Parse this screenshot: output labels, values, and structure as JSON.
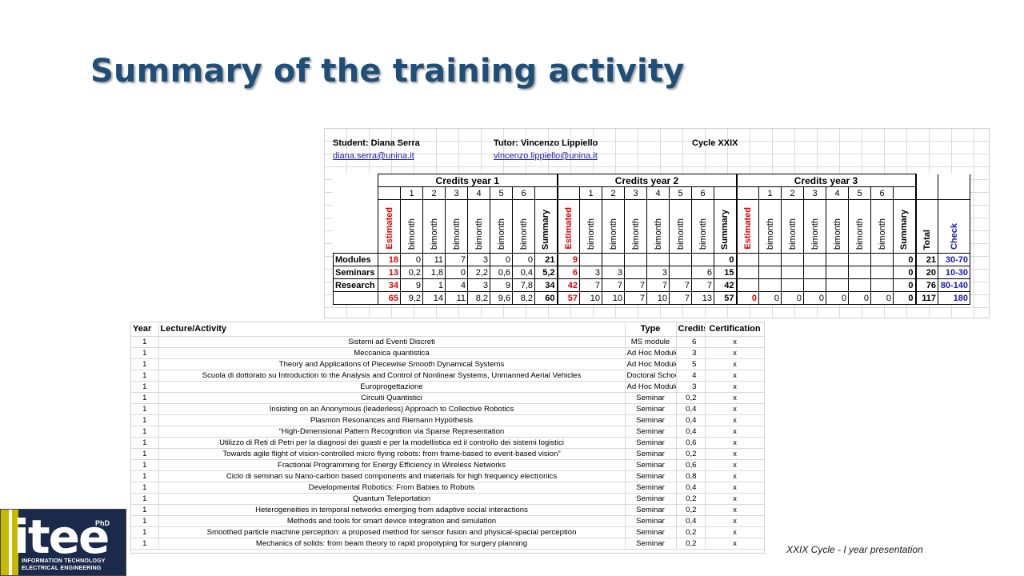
{
  "slide": {
    "title": "Summary of the training activity",
    "footer": "XXIX Cycle - I year presentation",
    "logo": {
      "word": "itee",
      "phd": "PhD",
      "line1": "INFORMATION TECHNOLOGY",
      "line2": "ELECTRICAL ENGINEERING"
    }
  },
  "summary": {
    "student": "Student: Diana Serra",
    "student_email": "diana.serra@unina.it",
    "tutor": "Tutor: Vincenzo Lippiello",
    "tutor_email": "vincenzo.lippiello@unina.it",
    "cycle": "Cycle XXIX",
    "year_headers": [
      "Credits year 1",
      "Credits year 2",
      "Credits year 3"
    ],
    "bimonth_numbers": [
      "1",
      "2",
      "3",
      "4",
      "5",
      "6"
    ],
    "col_estimated": "Estimated",
    "col_bimonth": "bimonth",
    "col_summary": "Summary",
    "col_total": "Total",
    "col_check": "Check",
    "rows": [
      {
        "label": "Modules",
        "cells": [
          "18",
          "0",
          "11",
          "7",
          "3",
          "0",
          "0",
          "21",
          "9",
          "",
          "",
          "",
          "",
          "",
          "",
          "0",
          "",
          "",
          "",
          "",
          "",
          "",
          "",
          "0"
        ],
        "total": "21",
        "check": "30-70"
      },
      {
        "label": "Seminars",
        "cells": [
          "13",
          "0,2",
          "1,8",
          "0",
          "2,2",
          "0,6",
          "0,4",
          "5,2",
          "6",
          "3",
          "3",
          "",
          "3",
          "",
          "6",
          "15",
          "",
          "",
          "",
          "",
          "",
          "",
          "",
          "0"
        ],
        "total": "20",
        "check": "10-30"
      },
      {
        "label": "Research",
        "cells": [
          "34",
          "9",
          "1",
          "4",
          "3",
          "9",
          "7,8",
          "34",
          "42",
          "7",
          "7",
          "7",
          "7",
          "7",
          "7",
          "42",
          "",
          "",
          "",
          "",
          "",
          "",
          "",
          "0"
        ],
        "total": "76",
        "check": "80-140"
      },
      {
        "label": "",
        "cells": [
          "65",
          "9,2",
          "14",
          "11",
          "8,2",
          "9,6",
          "8,2",
          "60",
          "57",
          "10",
          "10",
          "7",
          "10",
          "7",
          "13",
          "57",
          "0",
          "0",
          "0",
          "0",
          "0",
          "0",
          "0",
          "0"
        ],
        "total": "117",
        "check": "180"
      }
    ]
  },
  "activities": {
    "headers": {
      "year": "Year",
      "lecture": "Lecture/Activity",
      "type": "Type",
      "credits": "Credits",
      "certification": "Certification"
    },
    "rows": [
      {
        "year": "1",
        "lecture": "Sistemi ad Eventi Discreti",
        "type": "MS module",
        "credits": "6",
        "cert": "x"
      },
      {
        "year": "1",
        "lecture": "Meccanica quantistica",
        "type": "Ad Hoc Module",
        "credits": "3",
        "cert": "x"
      },
      {
        "year": "1",
        "lecture": "Theory and Applications of Piecewise Smooth Dynamical Systems",
        "type": "Ad Hoc Module",
        "credits": "5",
        "cert": "x"
      },
      {
        "year": "1",
        "lecture": "Scuola di dottorato su Introduction to the Analysis and Control of Nonlinear Systems, Unmanned Aerial Vehicles",
        "type": "Doctoral School",
        "credits": "4",
        "cert": "x"
      },
      {
        "year": "1",
        "lecture": "Europrogettazione",
        "type": "Ad Hoc Module",
        "credits": "3",
        "cert": "x"
      },
      {
        "year": "1",
        "lecture": "Circuiti Quantistici",
        "type": "Seminar",
        "credits": "0,2",
        "cert": "x"
      },
      {
        "year": "1",
        "lecture": "Insisting on an Anonymous (leaderless) Approach to Collective Robotics",
        "type": "Seminar",
        "credits": "0,4",
        "cert": "x"
      },
      {
        "year": "1",
        "lecture": "Plasmon Resonances and Riemann Hypothesis",
        "type": "Seminar",
        "credits": "0,4",
        "cert": "x"
      },
      {
        "year": "1",
        "lecture": "“High-Dimensional Pattern Recognition via Sparse Representation",
        "type": "Seminar",
        "credits": "0,4",
        "cert": "x"
      },
      {
        "year": "1",
        "lecture": "Utilizzo di Reti di Petri per la diagnosi dei guasti e per la modellistica ed il controllo dei sistemi logistici",
        "type": "Seminar",
        "credits": "0,6",
        "cert": "x"
      },
      {
        "year": "1",
        "lecture": "Towards agile flight of vision-controlled micro flying robots: from frame-based to event-based vision”",
        "type": "Seminar",
        "credits": "0,2",
        "cert": "x"
      },
      {
        "year": "1",
        "lecture": "Fractional Programming for Energy Efficiency in Wireless Networks",
        "type": "Seminar",
        "credits": "0,6",
        "cert": "x"
      },
      {
        "year": "1",
        "lecture": "Ciclo di seminari su Nano-carbon based components and materials for high frequency electronics",
        "type": "Seminar",
        "credits": "0,8",
        "cert": "x"
      },
      {
        "year": "1",
        "lecture": "Developmental Robotics: From Babies to Robots",
        "type": "Seminar",
        "credits": "0,4",
        "cert": "x"
      },
      {
        "year": "1",
        "lecture": "Quantum Teleportation",
        "type": "Seminar",
        "credits": "0,2",
        "cert": "x"
      },
      {
        "year": "1",
        "lecture": "Heterogeneities in temporal networks emerging from adaptive social interactions",
        "type": "Seminar",
        "credits": "0,2",
        "cert": "x"
      },
      {
        "year": "1",
        "lecture": "Methods and tools for smart device integration and simulation",
        "type": "Seminar",
        "credits": "0,4",
        "cert": "x"
      },
      {
        "year": "1",
        "lecture": "Smoothed particle machine perception: a proposed method for sensor fusion and physical-spacial perception",
        "type": "Seminar",
        "credits": "0,2",
        "cert": "x"
      },
      {
        "year": "1",
        "lecture": "Mechanics of solids: from beam theory to rapid propotyping for surgery planning",
        "type": "Seminar",
        "credits": "0,2",
        "cert": "x"
      }
    ]
  }
}
